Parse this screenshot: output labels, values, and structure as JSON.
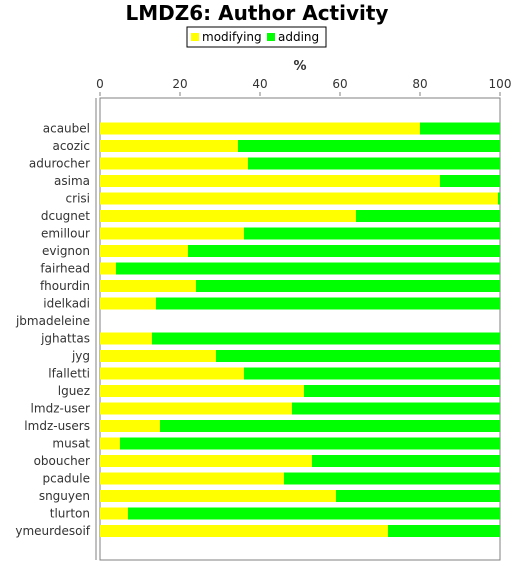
{
  "chart_data": {
    "type": "bar",
    "orientation": "horizontal",
    "stacked": true,
    "title": "LMDZ6: Author Activity",
    "xlabel": "%",
    "xlim": [
      0,
      100
    ],
    "xticks": [
      "0",
      "20",
      "40",
      "60",
      "80",
      "100"
    ],
    "legend_position": "top",
    "categories": [
      "acaubel",
      "acozic",
      "adurocher",
      "asima",
      "crisi",
      "dcugnet",
      "emillour",
      "evignon",
      "fairhead",
      "fhourdin",
      "idelkadi",
      "jbmadeleine",
      "jghattas",
      "jyg",
      "lfalletti",
      "lguez",
      "lmdz-user",
      "lmdz-users",
      "musat",
      "oboucher",
      "pcadule",
      "snguyen",
      "tlurton",
      "ymeurdesoif"
    ],
    "series": [
      {
        "name": "modifying",
        "color": "#ffff00",
        "values": [
          80,
          34.5,
          37,
          85,
          99.5,
          64,
          36,
          22,
          4,
          24,
          14,
          0,
          13,
          29,
          36,
          51,
          48,
          15,
          5,
          53,
          46,
          59,
          7,
          72
        ]
      },
      {
        "name": "adding",
        "color": "#00ff00",
        "values": [
          20,
          65.5,
          63,
          15,
          0.5,
          36,
          64,
          78,
          96,
          76,
          86,
          0,
          87,
          71,
          64,
          49,
          52,
          85,
          95,
          47,
          54,
          41,
          93,
          28
        ]
      }
    ]
  }
}
